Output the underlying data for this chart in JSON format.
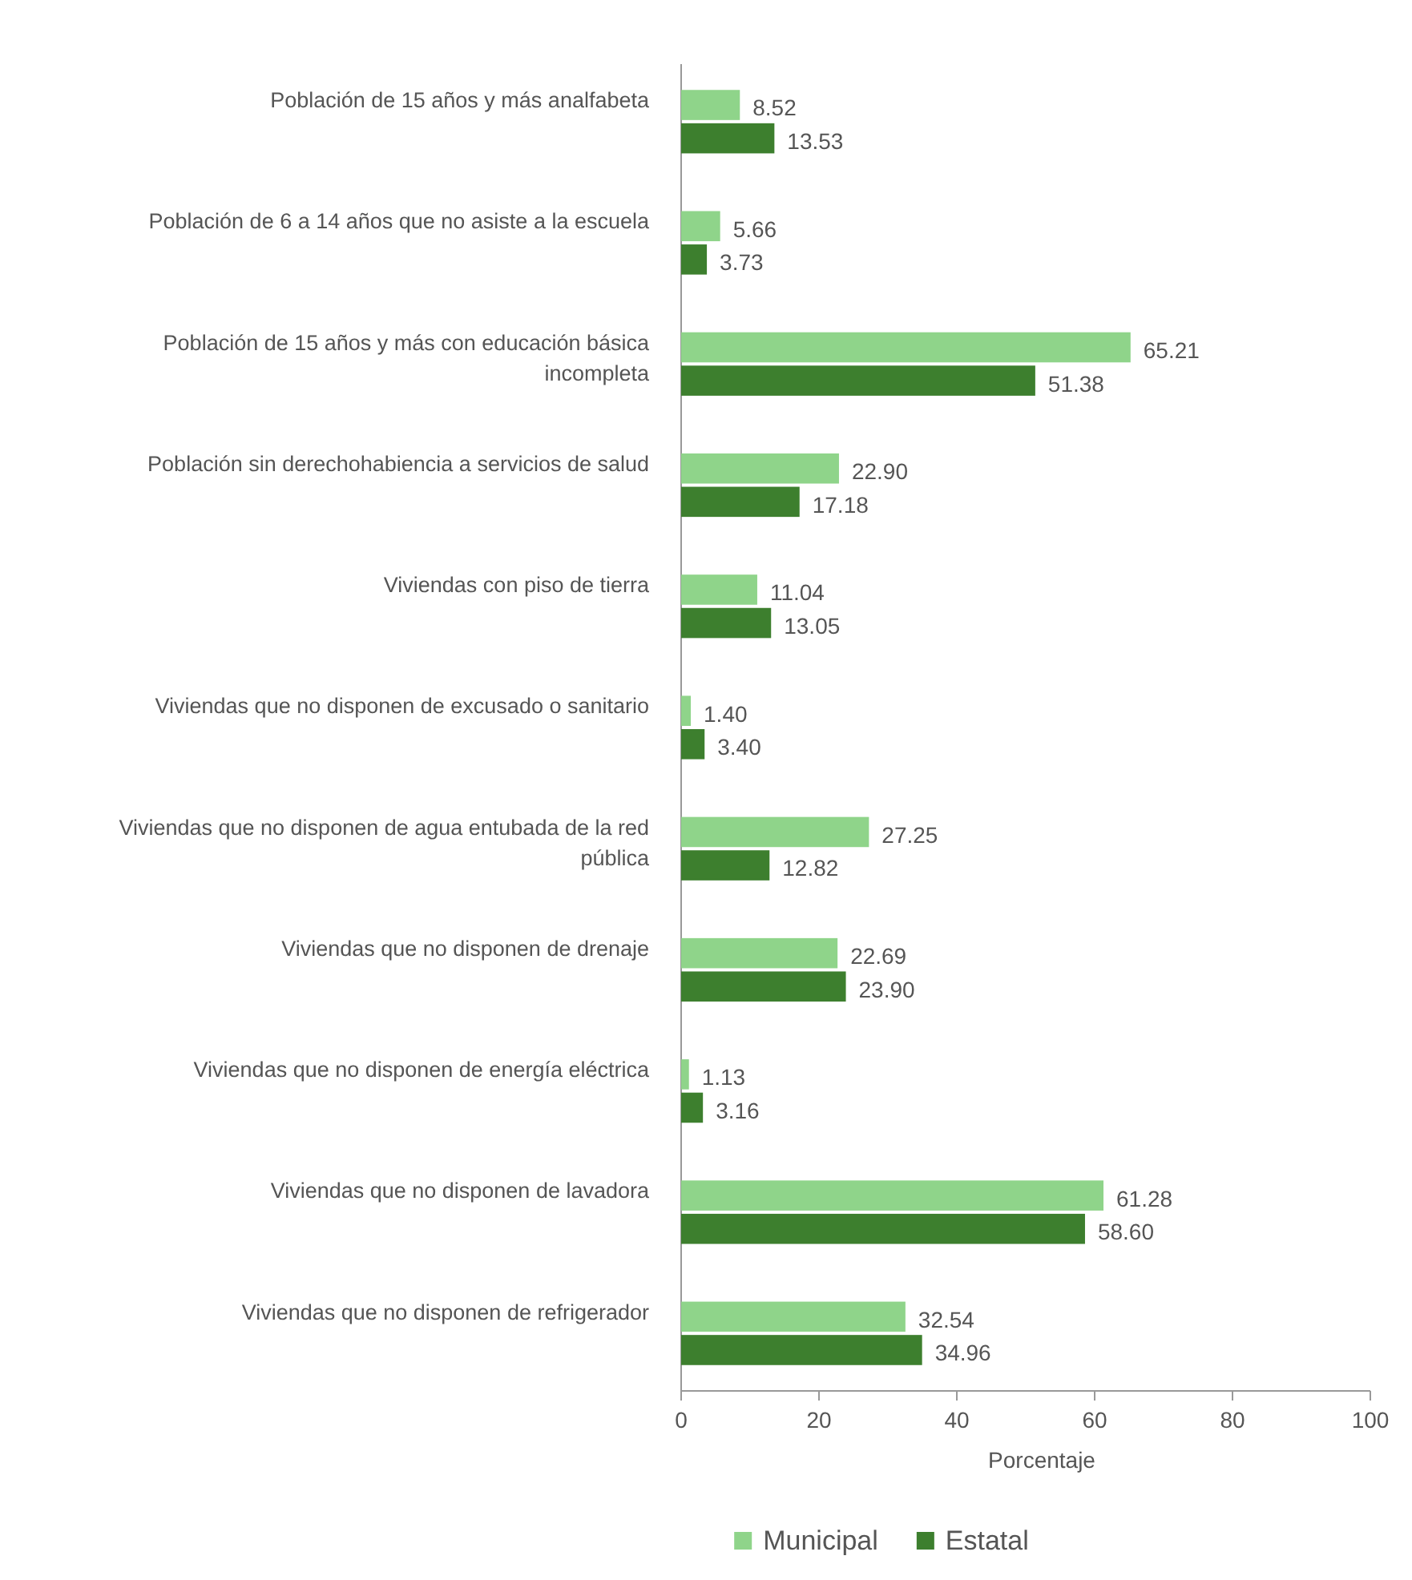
{
  "chart_data": {
    "type": "bar",
    "orientation": "horizontal",
    "xlabel": "Porcentaje",
    "categories": [
      "Población de 15 años y más analfabeta",
      "Población de 6 a 14 años que no asiste a la escuela",
      "Población de 15 años y más con educación básica incompleta",
      "Población sin derechohabiencia a servicios de salud",
      "Viviendas con piso de tierra",
      "Viviendas que no disponen de excusado o sanitario",
      "Viviendas que no disponen de agua entubada de la red pública",
      "Viviendas que no disponen de drenaje",
      "Viviendas que no disponen de energía eléctrica",
      "Viviendas que no disponen de lavadora",
      "Viviendas que no disponen de refrigerador"
    ],
    "series": [
      {
        "name": "Municipal",
        "color": "#8fd48a",
        "values": [
          8.52,
          5.66,
          65.21,
          22.9,
          11.04,
          1.4,
          27.25,
          22.69,
          1.13,
          61.28,
          32.54
        ],
        "value_labels": [
          "8.52",
          "5.66",
          "65.21",
          "22.90",
          "11.04",
          "1.40",
          "27.25",
          "22.69",
          "1.13",
          "61.28",
          "32.54"
        ]
      },
      {
        "name": "Estatal",
        "color": "#3d7f2e",
        "values": [
          13.53,
          3.73,
          51.38,
          17.18,
          13.05,
          3.4,
          12.82,
          23.9,
          3.16,
          58.6,
          34.96
        ],
        "value_labels": [
          "13.53",
          "3.73",
          "51.38",
          "17.18",
          "13.05",
          "3.40",
          "12.82",
          "23.90",
          "3.16",
          "58.60",
          "34.96"
        ]
      }
    ],
    "xlim": [
      0,
      100
    ],
    "xticks": [
      0,
      20,
      40,
      60,
      80,
      100
    ],
    "grid": false,
    "legend": "bottom"
  }
}
